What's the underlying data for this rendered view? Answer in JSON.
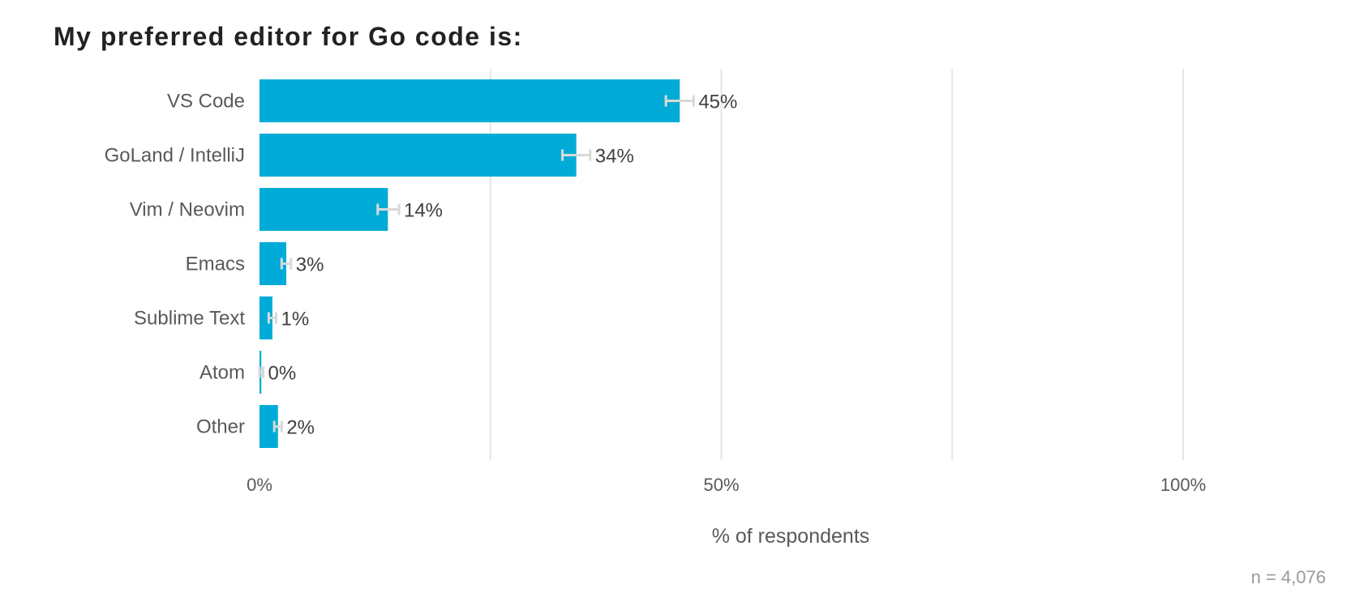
{
  "chart_data": {
    "type": "bar",
    "orientation": "horizontal",
    "title": "My preferred editor for Go code is:",
    "categories": [
      "VS Code",
      "GoLand / IntelliJ",
      "Vim / Neovim",
      "Emacs",
      "Sublime Text",
      "Atom",
      "Other"
    ],
    "values": [
      45.5,
      34.3,
      13.9,
      2.9,
      1.4,
      0.2,
      2.0
    ],
    "value_labels": [
      "45%",
      "34%",
      "14%",
      "3%",
      "1%",
      "0%",
      "2%"
    ],
    "error_bars": [
      {
        "low": 44.0,
        "high": 47.0
      },
      {
        "low": 32.8,
        "high": 35.8
      },
      {
        "low": 12.8,
        "high": 15.1
      },
      {
        "low": 2.4,
        "high": 3.4
      },
      {
        "low": 1.0,
        "high": 1.8
      },
      {
        "low": 0.0,
        "high": 0.4
      },
      {
        "low": 1.6,
        "high": 2.4
      }
    ],
    "xlabel": "% of respondents",
    "ylabel": "",
    "xlim": [
      0,
      115
    ],
    "xticks": [
      0,
      50,
      100
    ],
    "xtick_labels": [
      "0%",
      "50%",
      "100%"
    ],
    "gridlines": [
      0,
      25,
      50,
      75,
      100
    ],
    "grid": true,
    "legend": "none",
    "footnote": "n =  4,076",
    "colors": {
      "bar": "#00acd7",
      "error_bar": "#d9d9d9",
      "gridline": "#e6e6e6"
    }
  }
}
